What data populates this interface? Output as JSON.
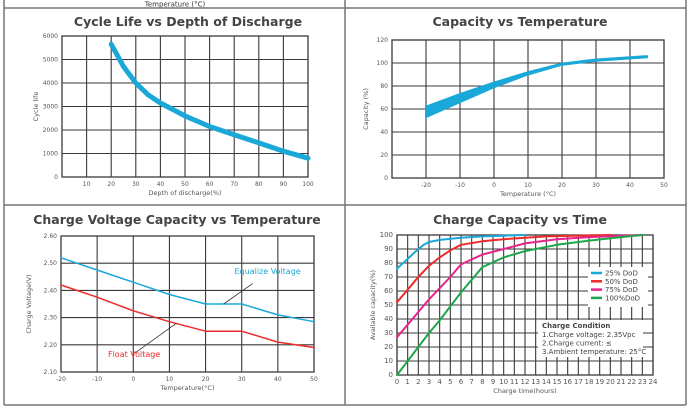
{
  "header_fragment": "Temperature (°C)",
  "colors": {
    "cyan": "#1aa8d8",
    "red": "#ee2a2a",
    "magenta": "#e6248c",
    "green": "#1ea64a",
    "grid": "#3a3a3a"
  },
  "chart_data": [
    {
      "type": "line",
      "title": "Cycle Life vs Depth of Discharge",
      "xlabel": "Depth of discharge(%)",
      "ylabel": "Cycle life",
      "xlim": [
        0,
        100
      ],
      "ylim": [
        0,
        6000
      ],
      "xticks": [
        "10",
        "20",
        "30",
        "40",
        "50",
        "60",
        "70",
        "80",
        "90",
        "100"
      ],
      "yticks": [
        "0",
        "1000",
        "2000",
        "3000",
        "4000",
        "5000",
        "6000"
      ],
      "grid": true,
      "series": [
        {
          "color": "#1aa8d8",
          "x": [
            20,
            25,
            30,
            35,
            40,
            50,
            60,
            70,
            80,
            90,
            100
          ],
          "y": [
            5650,
            4700,
            4000,
            3500,
            3150,
            2600,
            2150,
            1800,
            1450,
            1100,
            800
          ]
        }
      ]
    },
    {
      "type": "area",
      "title": "Capacity vs Temperature",
      "xlabel": "Temperature (°C)",
      "ylabel": "Capacity (%)",
      "xlim": [
        -30,
        50
      ],
      "ylim": [
        0,
        120
      ],
      "xticks": [
        "-20",
        "-10",
        "0",
        "10",
        "20",
        "30",
        "40",
        "50"
      ],
      "yticks": [
        "0",
        "20",
        "40",
        "60",
        "80",
        "100",
        "120"
      ],
      "grid": true,
      "band": {
        "color": "#1aa8d8",
        "x": [
          -20,
          -10,
          0,
          10,
          20,
          30,
          45
        ],
        "upper": [
          62,
          73,
          83,
          92,
          99.5,
          103,
          106
        ],
        "lower": [
          53,
          66,
          79,
          90,
          98.5,
          102,
          105
        ]
      }
    },
    {
      "type": "line",
      "title": "Charge Voltage  Capacity  vs  Temperature",
      "xlabel": "Temperature(°C)",
      "ylabel": "Charge Voltage(V)",
      "xlim": [
        -20,
        50
      ],
      "ylim": [
        2.1,
        2.6
      ],
      "xticks": [
        "-20",
        "-10",
        "0",
        "10",
        "20",
        "30",
        "40",
        "50"
      ],
      "yticks": [
        "2.10",
        "2.20",
        "2.30",
        "2.40",
        "2.50",
        "2.60"
      ],
      "grid": true,
      "series": [
        {
          "name": "Equalize  Voltage",
          "color": "#1aa8d8",
          "x": [
            -20,
            -10,
            0,
            10,
            20,
            30,
            40,
            50
          ],
          "y": [
            2.52,
            2.475,
            2.43,
            2.385,
            2.35,
            2.35,
            2.31,
            2.285
          ]
        },
        {
          "name": "Float  Voltage",
          "color": "#ee2a2a",
          "x": [
            -20,
            -10,
            0,
            10,
            20,
            30,
            40,
            50
          ],
          "y": [
            2.42,
            2.375,
            2.325,
            2.285,
            2.25,
            2.25,
            2.21,
            2.19
          ]
        }
      ]
    },
    {
      "type": "line",
      "title": "Charge  Capacity  vs  Time",
      "xlabel": "Charge time(hours)",
      "ylabel": "Available capacity(%)",
      "xlim": [
        0,
        24
      ],
      "ylim": [
        0,
        100
      ],
      "xticks": [
        "0",
        "1",
        "2",
        "3",
        "4",
        "5",
        "6",
        "7",
        "8",
        "9",
        "10",
        "11",
        "12",
        "13",
        "14",
        "15",
        "16",
        "17",
        "18",
        "19",
        "20",
        "21",
        "22",
        "23",
        "24"
      ],
      "yticks": [
        "0",
        "10",
        "20",
        "30",
        "40",
        "50",
        "60",
        "70",
        "80",
        "90",
        "100"
      ],
      "grid": true,
      "legend_position": "right",
      "series": [
        {
          "name": "25%  DoD",
          "color": "#1aa8d8",
          "x": [
            0,
            1,
            2,
            2.5,
            3,
            4,
            6,
            8,
            10,
            12
          ],
          "y": [
            76,
            83,
            90,
            93,
            95,
            96.5,
            98,
            99,
            99.5,
            100
          ]
        },
        {
          "name": "50%  DoD",
          "color": "#ee2a2a",
          "x": [
            0,
            1,
            2,
            3,
            4,
            5,
            6,
            8,
            10,
            14,
            20
          ],
          "y": [
            52,
            61,
            70,
            78,
            84,
            89,
            93,
            95.5,
            97,
            99,
            100
          ]
        },
        {
          "name": "75%  DoD",
          "color": "#e6248c",
          "x": [
            0,
            1,
            2,
            3,
            4,
            5,
            6,
            8,
            10,
            12,
            15,
            18,
            23
          ],
          "y": [
            27,
            36,
            45,
            54,
            62,
            70,
            79,
            86,
            90,
            94,
            97,
            98.5,
            100
          ]
        },
        {
          "name": "100%DoD",
          "color": "#1ea64a",
          "x": [
            0,
            1,
            2,
            3,
            4,
            5,
            6,
            7,
            8,
            10,
            12,
            15,
            18,
            21,
            23
          ],
          "y": [
            0,
            10,
            20,
            30,
            39,
            49,
            59,
            68,
            77,
            84,
            88.5,
            93,
            96,
            98.5,
            100
          ]
        }
      ],
      "annotation": {
        "heading": "Charge Condition",
        "lines": [
          "1.Charge voltage: 2.35Vpc",
          "2.Charge current: ≤",
          "3.Ambient temperature: 25°C"
        ]
      }
    }
  ]
}
